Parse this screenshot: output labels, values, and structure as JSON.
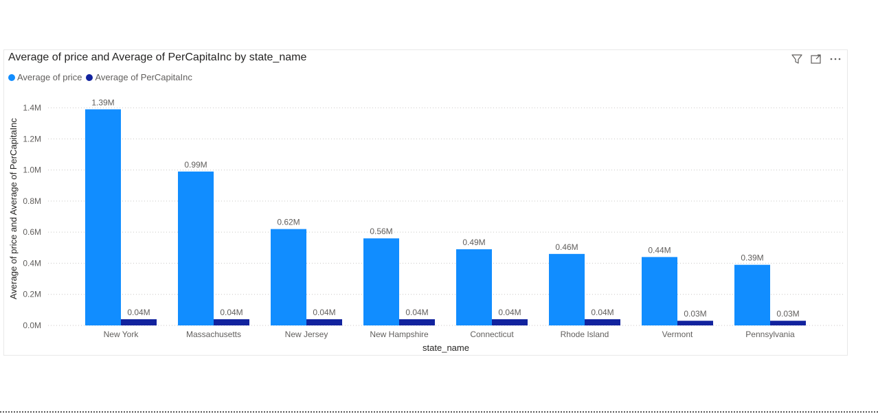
{
  "visual": {
    "title": "Average of price and Average of PerCapitaInc by state_name",
    "header_icons": [
      "filter-icon",
      "focus-mode-icon",
      "more-options-icon"
    ]
  },
  "chart_data": {
    "type": "bar",
    "title": "Average of price and Average of PerCapitaInc by state_name",
    "xlabel": "state_name",
    "ylabel": "Average of price and Average of PerCapitaInc",
    "categories": [
      "New York",
      "Massachusetts",
      "New Jersey",
      "New Hampshire",
      "Connecticut",
      "Rhode Island",
      "Vermont",
      "Pennsylvania"
    ],
    "series": [
      {
        "name": "Average of price",
        "color": "#118dff",
        "values": [
          1.39,
          0.99,
          0.62,
          0.56,
          0.49,
          0.46,
          0.44,
          0.39
        ],
        "labels": [
          "1.39M",
          "0.99M",
          "0.62M",
          "0.56M",
          "0.49M",
          "0.46M",
          "0.44M",
          "0.39M"
        ]
      },
      {
        "name": "Average of PerCapitaInc",
        "color": "#12239e",
        "values": [
          0.04,
          0.04,
          0.04,
          0.04,
          0.04,
          0.04,
          0.03,
          0.03
        ],
        "labels": [
          "0.04M",
          "0.04M",
          "0.04M",
          "0.04M",
          "0.04M",
          "0.04M",
          "0.03M",
          "0.03M"
        ]
      }
    ],
    "yticks": [
      0,
      0.2,
      0.4,
      0.6,
      0.8,
      1.0,
      1.2,
      1.4
    ],
    "ytick_labels": [
      "0.0M",
      "0.2M",
      "0.4M",
      "0.6M",
      "0.8M",
      "1.0M",
      "1.2M",
      "1.4M"
    ],
    "ylim": [
      0,
      1.4
    ],
    "grid": true,
    "legend_position": "top-left"
  }
}
